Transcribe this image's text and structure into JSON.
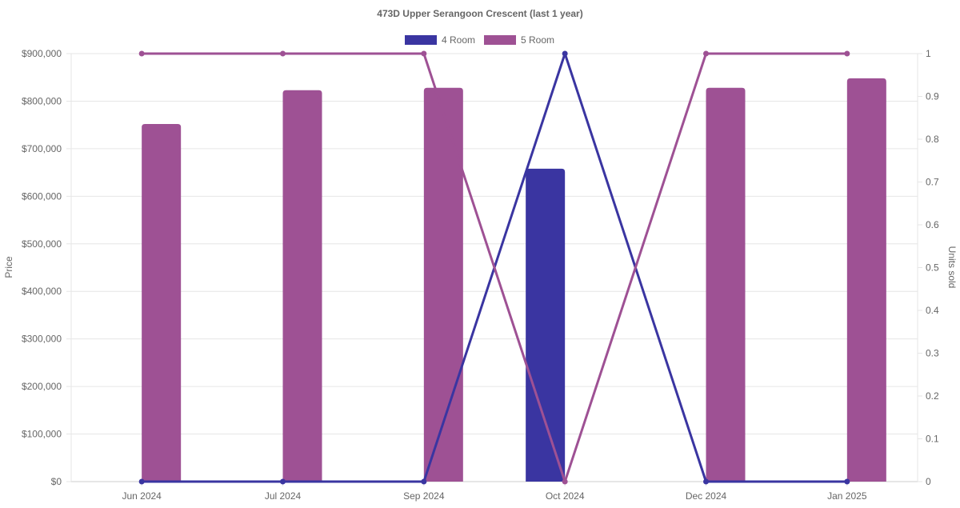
{
  "chart_data": {
    "type": "bar",
    "title": "473D Upper Serangoon Crescent (last 1 year)",
    "categories": [
      "Jun 2024",
      "Jul 2024",
      "Sep 2024",
      "Oct 2024",
      "Dec 2024",
      "Jan 2025"
    ],
    "ylabel": "Price",
    "y2label": "Units sold",
    "ylim": [
      0,
      900000
    ],
    "y2lim": [
      0,
      1
    ],
    "y_ticks": [
      "$0",
      "$100,000",
      "$200,000",
      "$300,000",
      "$400,000",
      "$500,000",
      "$600,000",
      "$700,000",
      "$800,000",
      "$900,000"
    ],
    "y2_ticks": [
      "0",
      "0.1",
      "0.2",
      "0.3",
      "0.4",
      "0.5",
      "0.6",
      "0.7",
      "0.8",
      "0.9",
      "1"
    ],
    "grid": true,
    "legend_position": "top",
    "series": [
      {
        "name": "4 Room",
        "color": "#3a35a1",
        "price": [
          null,
          null,
          null,
          658000,
          null,
          null
        ],
        "units_sold": [
          0,
          0,
          0,
          1,
          0,
          0
        ]
      },
      {
        "name": "5 Room",
        "color": "#9e5194",
        "price": [
          752000,
          823000,
          828000,
          null,
          828000,
          848000
        ],
        "units_sold": [
          1,
          1,
          1,
          0,
          1,
          1
        ]
      }
    ]
  }
}
